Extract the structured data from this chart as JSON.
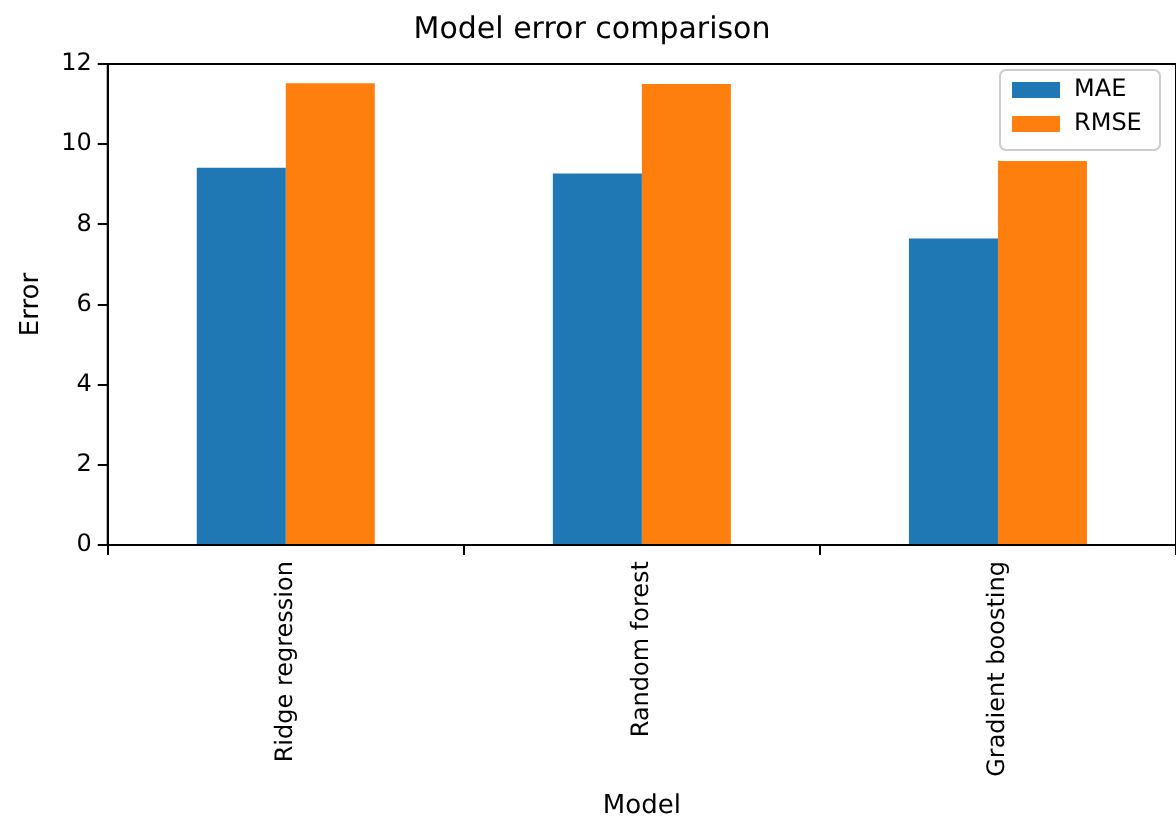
{
  "chart_data": {
    "type": "bar",
    "title": "Model error comparison",
    "xlabel": "Model",
    "ylabel": "Error",
    "categories": [
      "Ridge regression",
      "Random forest",
      "Gradient boosting"
    ],
    "series": [
      {
        "name": "MAE",
        "color": "#1f77b4",
        "values": [
          9.41,
          9.27,
          7.65
        ]
      },
      {
        "name": "RMSE",
        "color": "#ff7f0e",
        "values": [
          11.52,
          11.5,
          9.58
        ]
      }
    ],
    "ylim": [
      0,
      12
    ],
    "yticks": [
      0,
      2,
      4,
      6,
      8,
      10,
      12
    ],
    "grid": false,
    "legend": "top right"
  }
}
